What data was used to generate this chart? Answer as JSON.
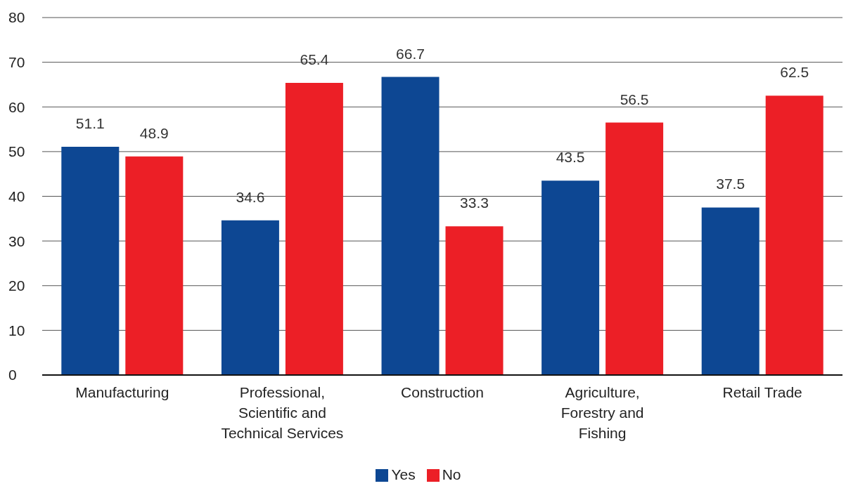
{
  "chart_data": {
    "type": "bar",
    "categories": [
      "Manufacturing",
      "Professional, Scientific and Technical Services",
      "Construction",
      "Agriculture, Forestry and Fishing",
      "Retail Trade"
    ],
    "series": [
      {
        "name": "Yes",
        "color": "#0d4793",
        "values": [
          51.1,
          34.6,
          66.7,
          43.5,
          37.5
        ]
      },
      {
        "name": "No",
        "color": "#ec1f26",
        "values": [
          48.9,
          65.4,
          33.3,
          56.5,
          62.5
        ]
      }
    ],
    "ylim": [
      0,
      80
    ],
    "yticks": [
      0,
      10,
      20,
      30,
      40,
      50,
      60,
      70,
      80
    ],
    "grid": "y",
    "legend": "bottom",
    "data_labels": true
  }
}
